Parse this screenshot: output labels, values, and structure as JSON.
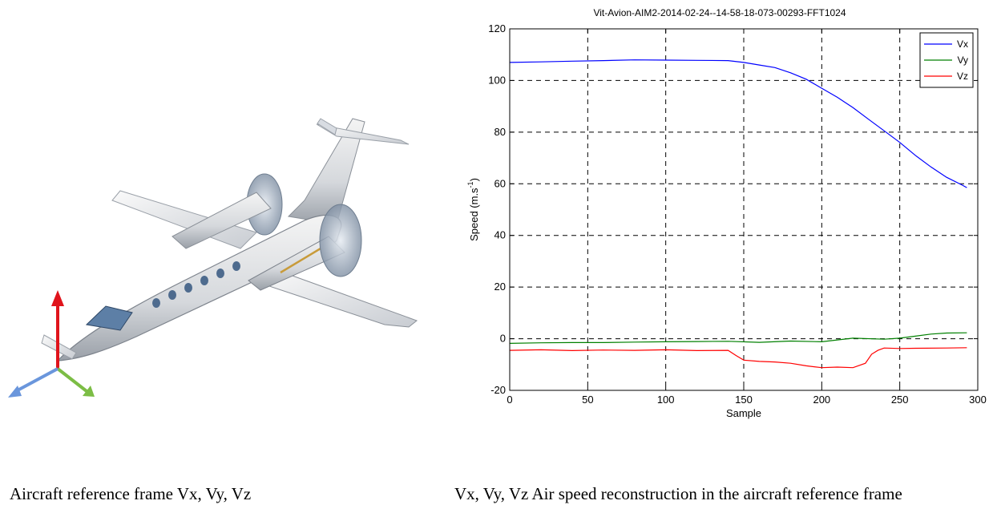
{
  "captions": {
    "left": "Aircraft reference frame Vx, Vy, Vz",
    "right": "Vx, Vy, Vz  Air speed reconstruction in the aircraft reference frame"
  },
  "chart_data": {
    "type": "line",
    "title": "Vit-Avion-AIM2-2014-02-24--14-58-18-073-00293-FFT1024",
    "xlabel": "Sample",
    "ylabel": "Speed (m.s",
    "ylabel_sup": "-1",
    "ylabel_close": ")",
    "xlim": [
      0,
      300
    ],
    "ylim": [
      -20,
      120
    ],
    "xticks": [
      0,
      50,
      100,
      150,
      200,
      250,
      300
    ],
    "yticks": [
      -20,
      0,
      20,
      40,
      60,
      80,
      100,
      120
    ],
    "grid": true,
    "legend_position": "top-right",
    "series": [
      {
        "name": "Vx",
        "color": "#0000ff",
        "x": [
          0,
          20,
          40,
          60,
          80,
          100,
          120,
          140,
          150,
          160,
          170,
          180,
          190,
          200,
          210,
          220,
          230,
          240,
          250,
          260,
          270,
          280,
          290,
          293
        ],
        "values": [
          107,
          107.2,
          107.5,
          107.7,
          108,
          107.9,
          107.8,
          107.7,
          107,
          106,
          105,
          103,
          100.5,
          97,
          93.5,
          89.5,
          85,
          80.5,
          76,
          71,
          66.5,
          62.5,
          59.5,
          58.5
        ]
      },
      {
        "name": "Vy",
        "color": "#008000",
        "x": [
          0,
          20,
          40,
          60,
          80,
          100,
          120,
          140,
          160,
          180,
          200,
          220,
          240,
          250,
          260,
          270,
          280,
          293
        ],
        "values": [
          -1.8,
          -1.6,
          -1.5,
          -1.5,
          -1.3,
          -1.2,
          -1.1,
          -1.0,
          -1.4,
          -0.9,
          -1.2,
          0.2,
          -0.2,
          0.2,
          1.0,
          1.8,
          2.2,
          2.3
        ]
      },
      {
        "name": "Vz",
        "color": "#ff0000",
        "x": [
          0,
          20,
          40,
          60,
          80,
          100,
          120,
          140,
          145,
          150,
          160,
          170,
          180,
          190,
          200,
          210,
          220,
          228,
          232,
          236,
          240,
          250,
          260,
          280,
          293
        ],
        "values": [
          -4.5,
          -4.3,
          -4.6,
          -4.4,
          -4.5,
          -4.3,
          -4.6,
          -4.5,
          -6.5,
          -8.3,
          -8.8,
          -9.0,
          -9.5,
          -10.5,
          -11.2,
          -11.0,
          -11.2,
          -9.5,
          -6.0,
          -4.5,
          -3.6,
          -3.8,
          -3.7,
          -3.6,
          -3.5
        ]
      }
    ]
  }
}
